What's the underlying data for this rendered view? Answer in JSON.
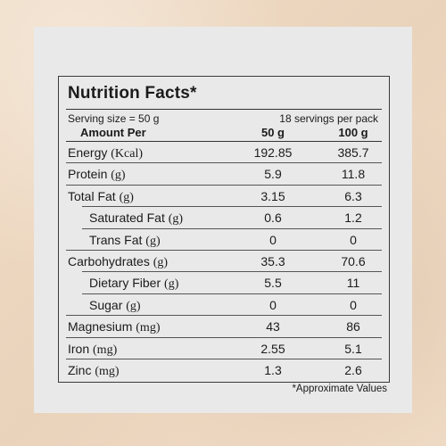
{
  "title": "Nutrition Facts*",
  "serving_size": "Serving size = 50 g",
  "servings_per_pack": "18 servings per pack",
  "amount_per": "Amount Per",
  "col_50": "50 g",
  "col_100": "100 g",
  "rows": [
    {
      "name": "Energy",
      "unit": "(Kcal)",
      "v50": "192.85",
      "v100": "385.7",
      "sub": false
    },
    {
      "name": "Protein",
      "unit": "(g)",
      "v50": "5.9",
      "v100": "11.8",
      "sub": false
    },
    {
      "name": "Total Fat",
      "unit": "(g)",
      "v50": "3.15",
      "v100": "6.3",
      "sub": false
    },
    {
      "name": "Saturated Fat",
      "unit": "(g)",
      "v50": "0.6",
      "v100": "1.2",
      "sub": true
    },
    {
      "name": "Trans Fat",
      "unit": "(g)",
      "v50": "0",
      "v100": "0",
      "sub": true
    },
    {
      "name": "Carbohydrates",
      "unit": "(g)",
      "v50": "35.3",
      "v100": "70.6",
      "sub": false
    },
    {
      "name": "Dietary Fiber",
      "unit": "(g)",
      "v50": "5.5",
      "v100": "11",
      "sub": true
    },
    {
      "name": "Sugar",
      "unit": "(g)",
      "v50": "0",
      "v100": "0",
      "sub": true
    },
    {
      "name": "Magnesium",
      "unit": "(mg)",
      "v50": "43",
      "v100": "86",
      "sub": false
    },
    {
      "name": "Iron",
      "unit": "(mg)",
      "v50": "2.55",
      "v100": "5.1",
      "sub": false
    },
    {
      "name": "Zinc",
      "unit": "(mg)",
      "v50": "1.3",
      "v100": "2.6",
      "sub": false
    }
  ],
  "footnote": "*Approximate Values"
}
